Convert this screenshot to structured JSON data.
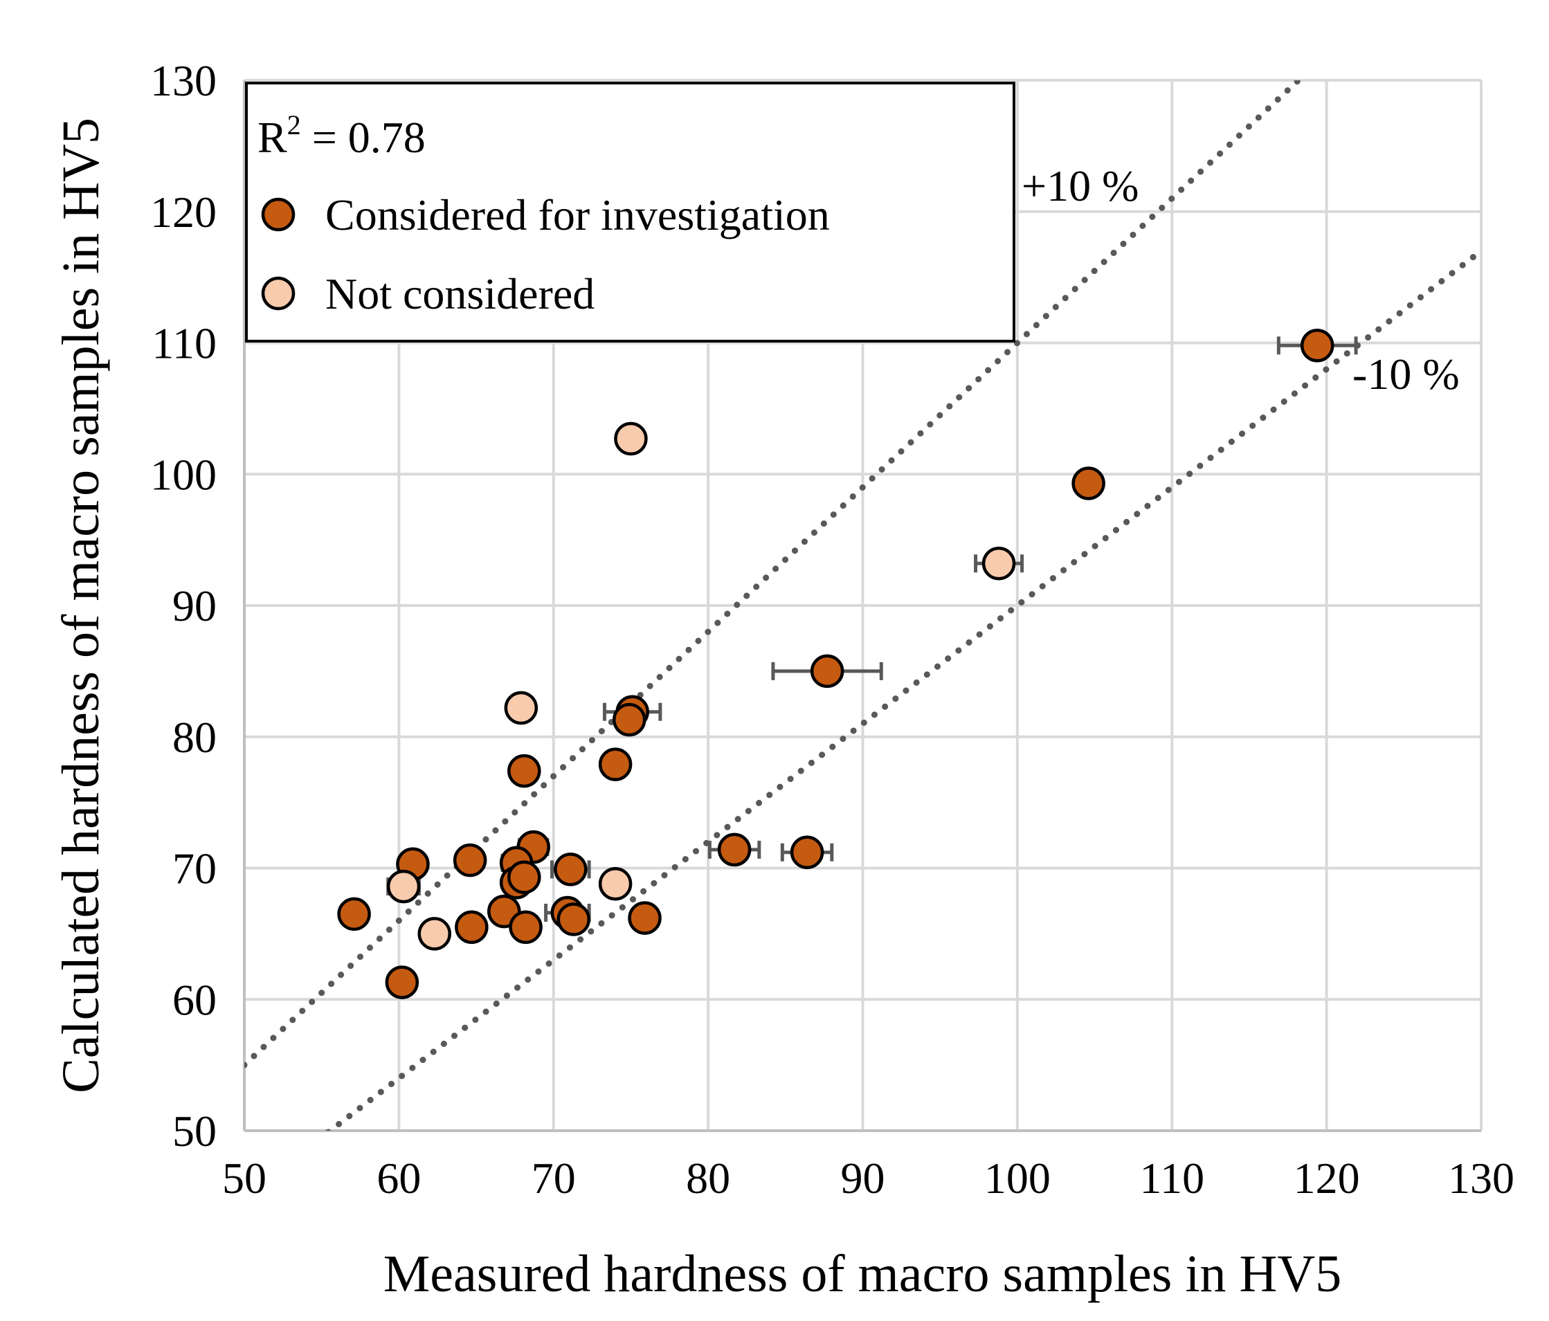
{
  "chart_data": {
    "type": "scatter",
    "xlabel": "Measured hardness of macro samples in HV5",
    "ylabel": "Calculated hardness of macro samples in HV5",
    "xlim": [
      50,
      130
    ],
    "ylim": [
      50,
      130
    ],
    "xticks": [
      "50",
      "60",
      "70",
      "80",
      "90",
      "100",
      "110",
      "120",
      "130"
    ],
    "yticks": [
      "50",
      "60",
      "70",
      "80",
      "90",
      "100",
      "110",
      "120",
      "130"
    ],
    "grid": true,
    "legend": {
      "position": "top-left",
      "r2_label": "R",
      "r2_sup": "2",
      "r2_value": " = 0.78",
      "entries": [
        "Considered for investigation",
        "Not considered"
      ]
    },
    "reference_lines": [
      {
        "name": "plus10",
        "label": "+10 %",
        "factor": 1.1
      },
      {
        "name": "minus10",
        "label": "-10 %",
        "factor": 0.9
      }
    ],
    "colors": {
      "considered": "#c55a11",
      "not_considered": "#f8cbad",
      "marker_edge": "#000000",
      "error_bar": "#595959",
      "reference_line": "#595959",
      "grid": "#d9d9d9"
    },
    "series": [
      {
        "name": "Considered for investigation",
        "points": [
          {
            "x": 119.4,
            "y": 109.8,
            "xerr": 2.5
          },
          {
            "x": 104.6,
            "y": 99.3,
            "xerr": 0
          },
          {
            "x": 87.7,
            "y": 85.0,
            "xerr": 3.5
          },
          {
            "x": 75.1,
            "y": 81.9,
            "xerr": 1.8
          },
          {
            "x": 74.9,
            "y": 81.3,
            "xerr": 0
          },
          {
            "x": 68.1,
            "y": 77.4,
            "xerr": 0
          },
          {
            "x": 74.0,
            "y": 77.9,
            "xerr": 0
          },
          {
            "x": 68.7,
            "y": 71.6,
            "xerr": 0.9
          },
          {
            "x": 81.7,
            "y": 71.4,
            "xerr": 1.6
          },
          {
            "x": 86.4,
            "y": 71.2,
            "xerr": 1.6
          },
          {
            "x": 60.9,
            "y": 70.3,
            "xerr": 0
          },
          {
            "x": 64.6,
            "y": 70.6,
            "xerr": 0
          },
          {
            "x": 67.6,
            "y": 70.4,
            "xerr": 0.9
          },
          {
            "x": 71.1,
            "y": 69.9,
            "xerr": 1.2
          },
          {
            "x": 67.6,
            "y": 68.9,
            "xerr": 0
          },
          {
            "x": 68.1,
            "y": 69.3,
            "xerr": 0.8
          },
          {
            "x": 57.1,
            "y": 66.5,
            "xerr": 0
          },
          {
            "x": 66.8,
            "y": 66.7,
            "xerr": 0
          },
          {
            "x": 70.9,
            "y": 66.6,
            "xerr": 1.4
          },
          {
            "x": 71.3,
            "y": 66.1,
            "xerr": 0
          },
          {
            "x": 75.9,
            "y": 66.2,
            "xerr": 0
          },
          {
            "x": 64.7,
            "y": 65.5,
            "xerr": 0
          },
          {
            "x": 68.2,
            "y": 65.5,
            "xerr": 0
          },
          {
            "x": 60.2,
            "y": 61.3,
            "xerr": 0
          }
        ]
      },
      {
        "name": "Not considered",
        "points": [
          {
            "x": 75.0,
            "y": 102.7,
            "xerr": 0
          },
          {
            "x": 98.8,
            "y": 93.2,
            "xerr": 1.5
          },
          {
            "x": 67.9,
            "y": 82.2,
            "xerr": 0
          },
          {
            "x": 74.0,
            "y": 68.8,
            "xerr": 0
          },
          {
            "x": 60.3,
            "y": 68.6,
            "xerr": 1.0
          },
          {
            "x": 62.3,
            "y": 65.0,
            "xerr": 0
          }
        ]
      }
    ]
  }
}
